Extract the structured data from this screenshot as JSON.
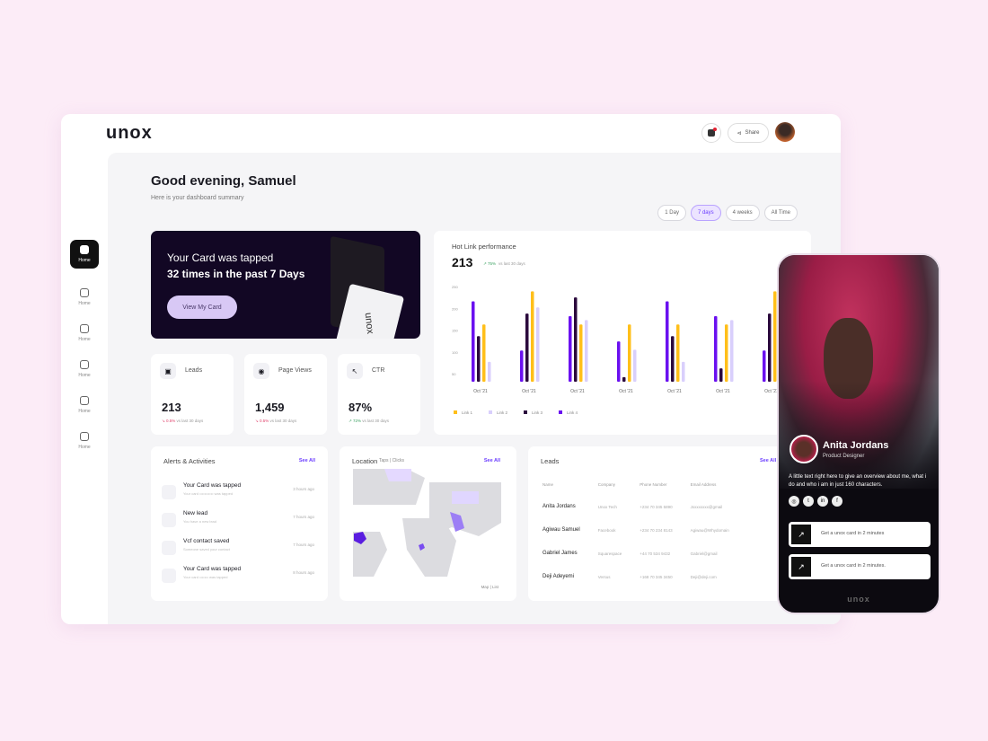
{
  "app": {
    "logo": "unox",
    "share_label": "Share",
    "brand_color": "#6b3dff"
  },
  "sidebar": {
    "items": [
      {
        "label": "Home",
        "icon": "home-icon"
      },
      {
        "label": "Home",
        "icon": "user-icon"
      },
      {
        "label": "Home",
        "icon": "contact-icon"
      },
      {
        "label": "Home",
        "icon": "card-icon"
      },
      {
        "label": "Home",
        "icon": "book-icon"
      },
      {
        "label": "Home",
        "icon": "settings-icon"
      }
    ]
  },
  "header": {
    "greeting": "Good evening, Samuel",
    "subtitle": "Here is your dashboard summary"
  },
  "ranges": {
    "options": [
      "1 Day",
      "7 days",
      "4 weeks",
      "All Time"
    ],
    "selected": "7 days"
  },
  "hero": {
    "line1": "Your Card was tapped",
    "line2": "32 times in the past 7 Days",
    "button": "View My Card",
    "card_logo": "unox"
  },
  "stats": [
    {
      "label": "Leads",
      "value": "213",
      "delta": "0.5%",
      "delta_dir": "down",
      "note": "vs last 30 days",
      "icon": "contact-icon"
    },
    {
      "label": "Page Views",
      "value": "1,459",
      "delta": "0.5%",
      "delta_dir": "down",
      "note": "vs last 30 days",
      "icon": "eye-icon"
    },
    {
      "label": "CTR",
      "value": "87%",
      "delta": "72%",
      "delta_dir": "up",
      "note": "vs last 30 days",
      "icon": "cursor-icon"
    }
  ],
  "chart_data": {
    "type": "bar",
    "title": "Hot Link performance",
    "total": "213",
    "delta": "75%",
    "delta_note": "vs last 30 days",
    "categories": [
      "Oct '21",
      "Oct '21",
      "Oct '21",
      "Oct '21",
      "Oct '21",
      "Oct '21",
      "Oct '21"
    ],
    "yticks": [
      50,
      100,
      150,
      200,
      250
    ],
    "ylim": [
      20,
      260
    ],
    "legend_position": "bottom-left",
    "series": [
      {
        "name": "Link 4",
        "color": "#6a10f0",
        "values": [
          216,
          103,
          182,
          124,
          216,
          182,
          103
        ]
      },
      {
        "name": "Link 3",
        "color": "#2b0a3d",
        "values": [
          136,
          188,
          225,
          42,
          136,
          62,
          188
        ]
      },
      {
        "name": "Link 1",
        "color": "#ffbf1a",
        "values": [
          163,
          239,
          163,
          163,
          163,
          163,
          239
        ]
      },
      {
        "name": "Link 2",
        "color": "#d9cffc",
        "values": [
          77,
          202,
          173,
          105,
          77,
          173,
          null
        ]
      }
    ],
    "legend_order": [
      "Link 1",
      "Link 2",
      "Link 3",
      "Link 4"
    ]
  },
  "alerts": {
    "title": "Alerts & Activities",
    "see_all": "See All",
    "items": [
      {
        "title": "Your Card was tapped",
        "sub": "Your card ••••••••••• was tapped",
        "time": "3 hours ago"
      },
      {
        "title": "New lead",
        "sub": "You have a new lead",
        "time": "7 hours ago"
      },
      {
        "title": "Vcf contact saved",
        "sub": "Someone saved your contact",
        "time": "7 hours ago"
      },
      {
        "title": "Your Card was tapped",
        "sub": "Your card ••••••• was tapped",
        "time": "8 hours ago"
      }
    ]
  },
  "location": {
    "title": "Location",
    "tabs": "Taps | Clicks",
    "see_all": "See All",
    "legend": [
      "1k",
      "5-10k",
      "10k+",
      "New"
    ],
    "footer": "Map | List"
  },
  "leads": {
    "title": "Leads",
    "see_all": "See All",
    "columns": [
      "Name",
      "Company",
      "Phone Number",
      "Email Address"
    ],
    "rows": [
      [
        "Anita Jordans",
        "Unox Tech",
        "+234 70 345 5890",
        "Jxxxxxxxx@gmail"
      ],
      [
        "Agiwau Samuel",
        "Facebook",
        "+234 70 234 8143",
        "Agiwau@Whydomain"
      ],
      [
        "Gabriel James",
        "Squarespace",
        "+44 70 534 9432",
        "Gabriel@gmail"
      ],
      [
        "Deji Adeyemi",
        "Versus",
        "+168 70 345 3450",
        "Deji@deji.com"
      ]
    ]
  },
  "profile": {
    "name": "Anita Jordans",
    "role": "Product Designer",
    "bio": "A little text right here to give an overview about me, what i do and who i am in just 160 characters.",
    "socials": [
      "instagram-icon",
      "twitter-icon",
      "linkedin-icon",
      "facebook-icon"
    ],
    "links": [
      "Get a unox card in 2 minutes",
      "Get a unox card in 2 minutes."
    ],
    "footer": "unox"
  }
}
